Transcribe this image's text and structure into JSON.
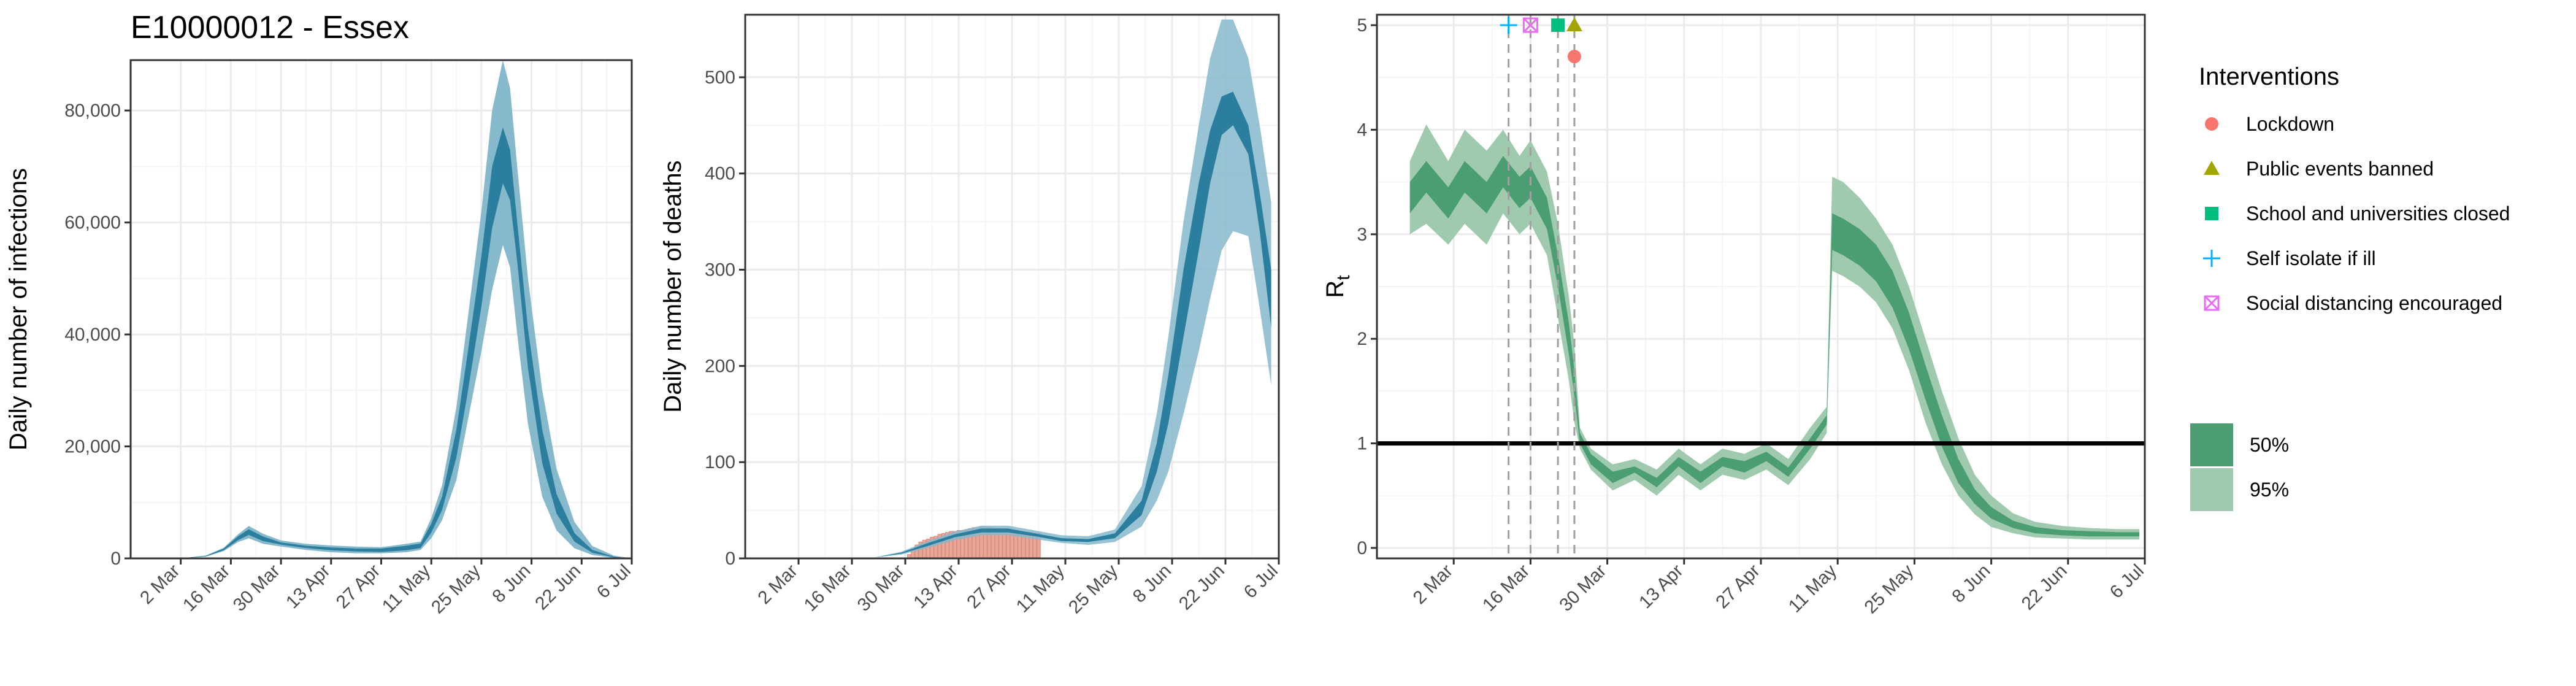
{
  "figure_title": "E10000012 - Essex",
  "colors": {
    "infection_dark": "#2b7e9e",
    "infection_light": "#86b9cc",
    "death_bar": "#e8a598",
    "rt_dark": "#4b9e72",
    "rt_light": "#9fcaae",
    "grid_major": "#ebebeb",
    "grid_minor": "#f5f5f5",
    "lockdown": "#f8766d",
    "public_events": "#a3a500",
    "schools": "#00bf7d",
    "self_isolate": "#00b0f6",
    "social_distancing": "#e76bf3"
  },
  "x_tick_labels": [
    "2 Mar",
    "16 Mar",
    "30 Mar",
    "13 Apr",
    "27 Apr",
    "11 May",
    "25 May",
    "8 Jun",
    "22 Jun",
    "6 Jul"
  ],
  "chart_data": [
    {
      "type": "area",
      "panel": "infections",
      "title": "E10000012 - Essex",
      "xlabel": "",
      "ylabel": "Daily number of infections",
      "x_range": [
        "2020-02-17",
        "2020-07-06"
      ],
      "ylim": [
        0,
        89000
      ],
      "y_ticks": [
        0,
        20000,
        40000,
        60000,
        80000
      ],
      "y_tick_labels": [
        "0",
        "20,000",
        "40,000",
        "60,000",
        "80,000"
      ],
      "grid": true,
      "series": [
        {
          "name": "95%",
          "x": [
            "2020-02-23",
            "2020-03-02",
            "2020-03-09",
            "2020-03-14",
            "2020-03-18",
            "2020-03-21",
            "2020-03-25",
            "2020-03-30",
            "2020-04-06",
            "2020-04-13",
            "2020-04-20",
            "2020-04-27",
            "2020-05-04",
            "2020-05-08",
            "2020-05-11",
            "2020-05-14",
            "2020-05-18",
            "2020-05-21",
            "2020-05-25",
            "2020-05-28",
            "2020-05-31",
            "2020-06-02",
            "2020-06-04",
            "2020-06-07",
            "2020-06-11",
            "2020-06-15",
            "2020-06-20",
            "2020-06-25",
            "2020-07-01",
            "2020-07-05"
          ],
          "lower": [
            0,
            0,
            300,
            1300,
            2900,
            3600,
            2600,
            2100,
            1500,
            1100,
            900,
            900,
            1100,
            1500,
            3600,
            6800,
            14000,
            24000,
            37000,
            48000,
            56000,
            52000,
            40000,
            24000,
            11000,
            5000,
            1800,
            600,
            100,
            0
          ],
          "upper": [
            0,
            0,
            500,
            1900,
            4300,
            5800,
            4400,
            3200,
            2600,
            2300,
            2100,
            2000,
            2600,
            3000,
            7200,
            13000,
            27000,
            42000,
            62000,
            80000,
            89000,
            84000,
            70000,
            50000,
            30000,
            16000,
            6500,
            2200,
            500,
            100
          ]
        },
        {
          "name": "50%",
          "x": [
            "2020-02-23",
            "2020-03-02",
            "2020-03-09",
            "2020-03-14",
            "2020-03-18",
            "2020-03-21",
            "2020-03-25",
            "2020-03-30",
            "2020-04-06",
            "2020-04-13",
            "2020-04-20",
            "2020-04-27",
            "2020-05-04",
            "2020-05-08",
            "2020-05-11",
            "2020-05-14",
            "2020-05-18",
            "2020-05-21",
            "2020-05-25",
            "2020-05-28",
            "2020-05-31",
            "2020-06-02",
            "2020-06-04",
            "2020-06-07",
            "2020-06-11",
            "2020-06-15",
            "2020-06-20",
            "2020-06-25",
            "2020-07-01",
            "2020-07-05"
          ],
          "lower": [
            0,
            0,
            350,
            1450,
            3250,
            4200,
            3100,
            2450,
            1850,
            1450,
            1250,
            1150,
            1450,
            1850,
            4600,
            8600,
            18000,
            29000,
            45000,
            59000,
            67000,
            64000,
            53000,
            34000,
            17000,
            8000,
            3000,
            1000,
            200,
            0
          ],
          "upper": [
            0,
            0,
            450,
            1750,
            3950,
            5200,
            3900,
            2850,
            2250,
            1950,
            1750,
            1750,
            2250,
            2650,
            6200,
            11000,
            23000,
            36000,
            54000,
            70000,
            77000,
            73000,
            60000,
            41000,
            23000,
            11500,
            4500,
            1500,
            300,
            50
          ]
        }
      ]
    },
    {
      "type": "bar",
      "panel": "deaths",
      "xlabel": "",
      "ylabel": "Daily number of deaths",
      "x_range": [
        "2020-02-17",
        "2020-07-06"
      ],
      "ylim": [
        0,
        565
      ],
      "y_ticks": [
        0,
        100,
        200,
        300,
        400,
        500
      ],
      "y_tick_labels": [
        "0",
        "100",
        "200",
        "300",
        "400",
        "500"
      ],
      "grid": true,
      "bars": {
        "x": [
          "2020-03-31",
          "2020-04-01",
          "2020-04-02",
          "2020-04-03",
          "2020-04-04",
          "2020-04-05",
          "2020-04-06",
          "2020-04-07",
          "2020-04-08",
          "2020-04-09",
          "2020-04-10",
          "2020-04-11",
          "2020-04-12",
          "2020-04-13",
          "2020-04-14",
          "2020-04-15",
          "2020-04-16",
          "2020-04-17",
          "2020-04-18",
          "2020-04-19",
          "2020-04-20",
          "2020-04-21",
          "2020-04-22",
          "2020-04-23",
          "2020-04-24",
          "2020-04-25",
          "2020-04-26",
          "2020-04-27",
          "2020-04-28",
          "2020-04-29",
          "2020-04-30",
          "2020-05-01",
          "2020-05-02",
          "2020-05-03",
          "2020-05-04"
        ],
        "values": [
          4,
          9,
          14,
          17,
          19,
          20,
          22,
          23,
          25,
          26,
          27,
          28,
          28,
          29,
          29,
          30,
          31,
          32,
          32,
          33,
          33,
          32,
          32,
          31,
          31,
          30,
          29,
          29,
          28,
          27,
          27,
          27,
          27,
          26,
          26
        ]
      },
      "series": [
        {
          "name": "95%",
          "x": [
            "2020-03-15",
            "2020-03-22",
            "2020-03-29",
            "2020-04-05",
            "2020-04-12",
            "2020-04-19",
            "2020-04-26",
            "2020-05-03",
            "2020-05-10",
            "2020-05-17",
            "2020-05-24",
            "2020-05-31",
            "2020-06-04",
            "2020-06-07",
            "2020-06-11",
            "2020-06-15",
            "2020-06-18",
            "2020-06-21",
            "2020-06-24",
            "2020-06-28",
            "2020-07-01",
            "2020-07-04"
          ],
          "lower": [
            0,
            1,
            4,
            11,
            19,
            24,
            24,
            20,
            16,
            14,
            17,
            33,
            60,
            90,
            150,
            215,
            270,
            320,
            340,
            335,
            260,
            180
          ],
          "upper": [
            0,
            1,
            7,
            18,
            28,
            34,
            34,
            29,
            24,
            23,
            30,
            75,
            150,
            230,
            350,
            450,
            520,
            560,
            560,
            520,
            450,
            370
          ]
        },
        {
          "name": "50%",
          "x": [
            "2020-03-15",
            "2020-03-22",
            "2020-03-29",
            "2020-04-05",
            "2020-04-12",
            "2020-04-19",
            "2020-04-26",
            "2020-05-03",
            "2020-05-10",
            "2020-05-17",
            "2020-05-24",
            "2020-05-31",
            "2020-06-04",
            "2020-06-07",
            "2020-06-11",
            "2020-06-15",
            "2020-06-18",
            "2020-06-21",
            "2020-06-24",
            "2020-06-28",
            "2020-07-01",
            "2020-07-04"
          ],
          "lower": [
            0,
            1,
            5,
            13,
            22,
            27,
            27,
            23,
            18,
            17,
            21,
            45,
            90,
            140,
            230,
            320,
            390,
            440,
            450,
            420,
            340,
            240
          ],
          "upper": [
            0,
            1,
            6,
            16,
            25,
            31,
            31,
            26,
            21,
            20,
            26,
            60,
            120,
            190,
            300,
            390,
            445,
            480,
            485,
            450,
            380,
            300
          ]
        }
      ]
    },
    {
      "type": "area",
      "panel": "rt",
      "xlabel": "",
      "ylabel": "R",
      "ylabel_subscript": "t",
      "x_range": [
        "2020-02-17",
        "2020-07-06"
      ],
      "ylim": [
        -0.1,
        5.1
      ],
      "y_ticks": [
        0,
        1,
        2,
        3,
        4,
        5
      ],
      "y_tick_labels": [
        "0",
        "1",
        "2",
        "3",
        "4",
        "5"
      ],
      "grid": true,
      "reference_line": 1,
      "series": [
        {
          "name": "95%",
          "x": [
            "2020-02-23",
            "2020-02-26",
            "2020-03-01",
            "2020-03-04",
            "2020-03-08",
            "2020-03-11",
            "2020-03-14",
            "2020-03-16",
            "2020-03-19",
            "2020-03-21",
            "2020-03-23",
            "2020-03-24",
            "2020-03-25",
            "2020-03-27",
            "2020-03-31",
            "2020-04-04",
            "2020-04-08",
            "2020-04-12",
            "2020-04-16",
            "2020-04-20",
            "2020-04-24",
            "2020-04-28",
            "2020-05-02",
            "2020-05-06",
            "2020-05-09",
            "2020-05-10",
            "2020-05-12",
            "2020-05-15",
            "2020-05-18",
            "2020-05-21",
            "2020-05-24",
            "2020-05-27",
            "2020-05-30",
            "2020-06-02",
            "2020-06-05",
            "2020-06-08",
            "2020-06-12",
            "2020-06-16",
            "2020-06-21",
            "2020-06-26",
            "2020-07-01",
            "2020-07-05"
          ],
          "lower": [
            3.0,
            3.1,
            2.9,
            3.1,
            2.9,
            3.2,
            3.0,
            3.1,
            2.8,
            2.2,
            1.6,
            1.2,
            0.95,
            0.75,
            0.55,
            0.65,
            0.5,
            0.7,
            0.55,
            0.7,
            0.65,
            0.75,
            0.6,
            0.85,
            1.1,
            2.65,
            2.6,
            2.5,
            2.35,
            2.1,
            1.7,
            1.2,
            0.8,
            0.5,
            0.32,
            0.2,
            0.14,
            0.1,
            0.09,
            0.08,
            0.08,
            0.08
          ],
          "upper": [
            3.7,
            4.05,
            3.7,
            4.0,
            3.8,
            4.0,
            3.75,
            3.9,
            3.6,
            3.1,
            2.4,
            1.95,
            1.15,
            0.95,
            0.8,
            0.85,
            0.75,
            0.95,
            0.8,
            0.95,
            0.9,
            1.0,
            0.85,
            1.15,
            1.35,
            3.55,
            3.5,
            3.35,
            3.15,
            2.9,
            2.5,
            2.0,
            1.5,
            1.05,
            0.7,
            0.5,
            0.33,
            0.25,
            0.21,
            0.19,
            0.18,
            0.18
          ]
        },
        {
          "name": "50%",
          "x": [
            "2020-02-23",
            "2020-02-26",
            "2020-03-01",
            "2020-03-04",
            "2020-03-08",
            "2020-03-11",
            "2020-03-14",
            "2020-03-16",
            "2020-03-19",
            "2020-03-21",
            "2020-03-23",
            "2020-03-24",
            "2020-03-25",
            "2020-03-27",
            "2020-03-31",
            "2020-04-04",
            "2020-04-08",
            "2020-04-12",
            "2020-04-16",
            "2020-04-20",
            "2020-04-24",
            "2020-04-28",
            "2020-05-02",
            "2020-05-06",
            "2020-05-09",
            "2020-05-10",
            "2020-05-12",
            "2020-05-15",
            "2020-05-18",
            "2020-05-21",
            "2020-05-24",
            "2020-05-27",
            "2020-05-30",
            "2020-06-02",
            "2020-06-05",
            "2020-06-08",
            "2020-06-12",
            "2020-06-16",
            "2020-06-21",
            "2020-06-26",
            "2020-07-01",
            "2020-07-05"
          ],
          "lower": [
            3.2,
            3.4,
            3.15,
            3.4,
            3.2,
            3.45,
            3.25,
            3.35,
            3.05,
            2.5,
            1.85,
            1.45,
            1.0,
            0.8,
            0.62,
            0.72,
            0.58,
            0.78,
            0.62,
            0.78,
            0.72,
            0.83,
            0.68,
            0.95,
            1.18,
            2.85,
            2.8,
            2.7,
            2.55,
            2.3,
            1.9,
            1.42,
            0.97,
            0.62,
            0.42,
            0.28,
            0.19,
            0.14,
            0.12,
            0.11,
            0.11,
            0.11
          ],
          "upper": [
            3.5,
            3.7,
            3.45,
            3.7,
            3.5,
            3.75,
            3.55,
            3.65,
            3.35,
            2.8,
            2.15,
            1.7,
            1.1,
            0.9,
            0.73,
            0.78,
            0.67,
            0.87,
            0.73,
            0.87,
            0.83,
            0.92,
            0.77,
            1.05,
            1.27,
            3.2,
            3.15,
            3.05,
            2.9,
            2.65,
            2.25,
            1.75,
            1.27,
            0.85,
            0.56,
            0.39,
            0.26,
            0.2,
            0.17,
            0.16,
            0.15,
            0.15
          ]
        }
      ],
      "interventions": [
        {
          "name": "Self isolate if ill",
          "date": "2020-03-12",
          "y": 5.0,
          "shape": "plus",
          "color_key": "self_isolate"
        },
        {
          "name": "Social distancing encouraged",
          "date": "2020-03-16",
          "y": 5.0,
          "shape": "square-cross",
          "color_key": "social_distancing"
        },
        {
          "name": "School and universities closed",
          "date": "2020-03-21",
          "y": 5.0,
          "shape": "square",
          "color_key": "schools"
        },
        {
          "name": "Public events banned",
          "date": "2020-03-24",
          "y": 5.0,
          "shape": "triangle",
          "color_key": "public_events"
        },
        {
          "name": "Lockdown",
          "date": "2020-03-24",
          "y": 4.7,
          "shape": "circle",
          "color_key": "lockdown"
        }
      ]
    }
  ],
  "legend": {
    "title": "Interventions",
    "placement": "right",
    "items": [
      {
        "label": "Lockdown",
        "shape": "circle",
        "color_key": "lockdown"
      },
      {
        "label": "Public events banned",
        "shape": "triangle",
        "color_key": "public_events"
      },
      {
        "label": "School and universities closed",
        "shape": "square",
        "color_key": "schools"
      },
      {
        "label": "Self isolate if ill",
        "shape": "plus",
        "color_key": "self_isolate"
      },
      {
        "label": "Social distancing encouraged",
        "shape": "square-cross",
        "color_key": "social_distancing"
      }
    ],
    "interval_items": [
      {
        "label": "50%",
        "color_key": "rt_dark"
      },
      {
        "label": "95%",
        "color_key": "rt_light"
      }
    ]
  }
}
